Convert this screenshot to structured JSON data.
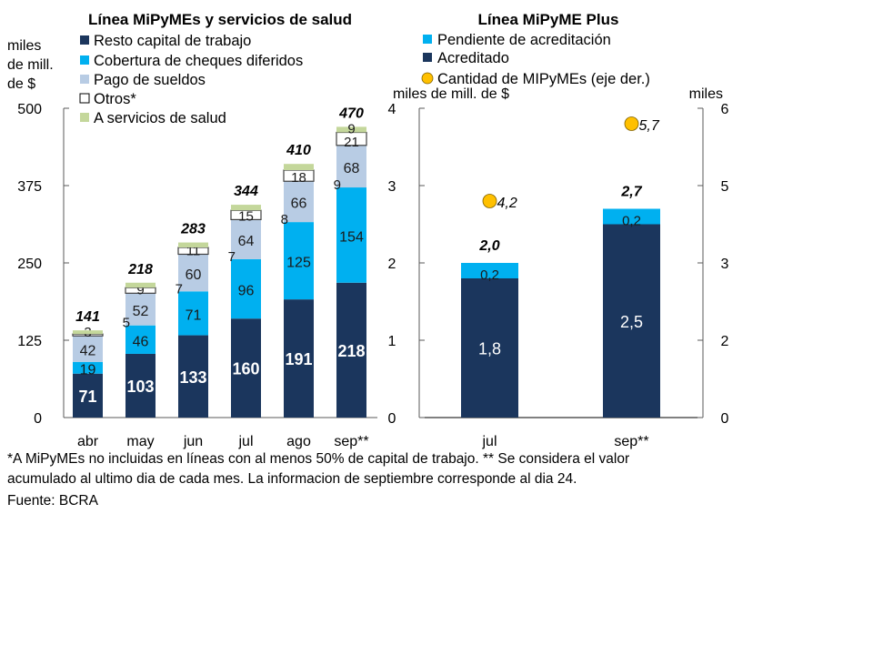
{
  "chart_data": [
    {
      "type": "bar",
      "stacked": true,
      "title": "Línea MiPyMEs y servicios de salud",
      "ylabel": "miles de mill. de $",
      "ylim": [
        0,
        500
      ],
      "yticks": [
        0,
        125,
        250,
        375,
        500
      ],
      "categories": [
        "abr",
        "may",
        "jun",
        "jul",
        "ago",
        "sep**"
      ],
      "series": [
        {
          "name": "Resto capital de trabajo",
          "color": "#1b365d",
          "label_color": "#ffffff",
          "values": [
            71,
            103,
            133,
            160,
            191,
            218
          ]
        },
        {
          "name": "Cobertura de cheques diferidos",
          "color": "#00b0f0",
          "label_color": "#1a1a1a",
          "values": [
            19,
            46,
            71,
            96,
            125,
            154
          ]
        },
        {
          "name": "Pago de sueldos",
          "color": "#b8cce4",
          "label_color": "#1a1a1a",
          "values": [
            42,
            52,
            60,
            64,
            66,
            68
          ]
        },
        {
          "name": "Otros*",
          "color": "#ffffff",
          "label_color": "#1a1a1a",
          "values": [
            3,
            9,
            11,
            15,
            18,
            21
          ]
        },
        {
          "name": "A servicios de salud",
          "color": "#c4d79b",
          "label_color": "#1a1a1a",
          "values": [
            6,
            8,
            8,
            9,
            10,
            9
          ]
        }
      ],
      "side_labels": [
        "",
        "5",
        "7",
        "7",
        "8",
        "9"
      ],
      "salud_labels": [
        "",
        "",
        "",
        "",
        "",
        "9"
      ],
      "totals": [
        "141",
        "218",
        "283",
        "344",
        "410",
        "470"
      ],
      "legend": "top-left"
    },
    {
      "type": "bar",
      "stacked": true,
      "title": "Línea MiPyME Plus",
      "ylabel": "miles de mill. de $",
      "ylabel_right": "miles",
      "ylim": [
        0,
        4
      ],
      "yticks": [
        0,
        1,
        2,
        3,
        4
      ],
      "ylim_right": [
        0,
        6
      ],
      "yticks_right": [
        0,
        1.5,
        3,
        4.5,
        6
      ],
      "ytick_labels_right": [
        "0",
        "2",
        "3",
        "5",
        "6"
      ],
      "categories": [
        "jul",
        "sep**"
      ],
      "series": [
        {
          "name": "Acreditado",
          "color": "#1b365d",
          "label_color": "#ffffff",
          "values": [
            1.8,
            2.5
          ],
          "labels": [
            "1,8",
            "2,5"
          ]
        },
        {
          "name": "Pendiente de acreditación",
          "color": "#00b0f0",
          "label_color": "#1a1a1a",
          "values": [
            0.2,
            0.2
          ],
          "labels": [
            "0,2",
            "0,2"
          ]
        }
      ],
      "totals": [
        "2,0",
        "2,7"
      ],
      "points": {
        "name": "Cantidad de MIPyMEs (eje der.)",
        "color": "#ffc000",
        "axis": "right",
        "values": [
          4.2,
          5.7
        ],
        "labels": [
          "4,2",
          "5,7"
        ]
      },
      "legend_order": [
        "Pendiente de acreditación",
        "Acreditado",
        "Cantidad de MIPyMEs (eje der.)"
      ],
      "legend": "top"
    }
  ],
  "left_unit_lines": [
    "miles",
    "de mill.",
    "de $"
  ],
  "footnote_lines": [
    "*A MiPyMEs no incluidas en líneas con al menos 50% de capital de trabajo. ** Se considera el valor",
    "acumulado al ultimo dia de cada mes. La informacion de septiembre corresponde al dia 24."
  ],
  "source": "Fuente: BCRA"
}
